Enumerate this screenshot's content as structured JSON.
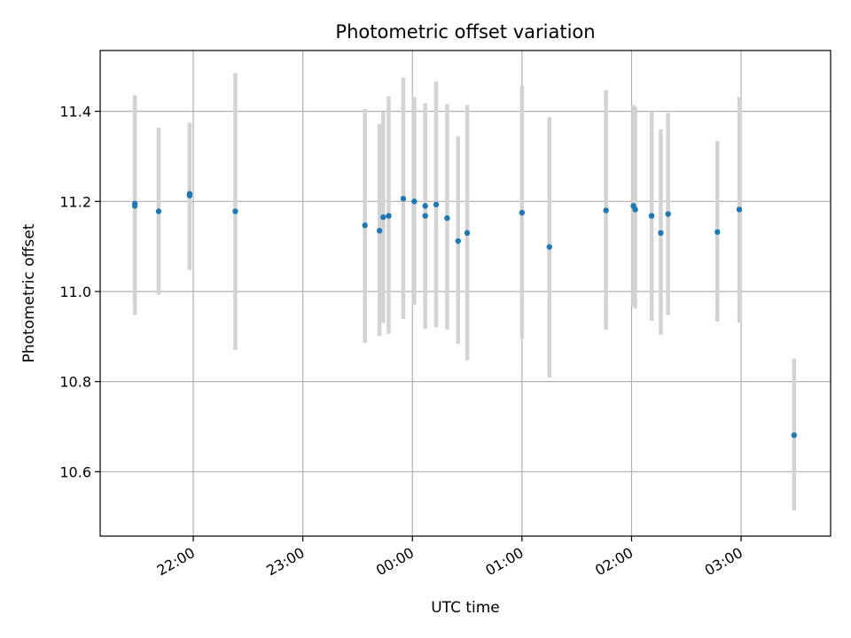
{
  "chart_data": {
    "type": "scatter",
    "title": "Photometric offset variation",
    "xlabel": "UTC time",
    "ylabel": "Photometric offset",
    "xlim": [
      "21:09",
      "03:49"
    ],
    "ylim": [
      10.457,
      11.535
    ],
    "x_ticks": [
      "22:00",
      "23:00",
      "00:00",
      "01:00",
      "02:00",
      "03:00"
    ],
    "y_ticks": [
      "10.6",
      "10.8",
      "11.0",
      "11.2",
      "11.4"
    ],
    "grid": true,
    "colors": {
      "points": "#1f77b4",
      "errorbars": "#d3d3d3",
      "grid": "#b0b0b0"
    },
    "points": [
      {
        "x": "21:28",
        "y": 11.195,
        "lo": 10.97,
        "hi": 11.42
      },
      {
        "x": "21:28",
        "y": 11.19,
        "lo": 10.948,
        "hi": 11.436
      },
      {
        "x": "21:41",
        "y": 11.178,
        "lo": 10.993,
        "hi": 11.364
      },
      {
        "x": "21:58",
        "y": 11.217,
        "lo": 11.048,
        "hi": 11.375
      },
      {
        "x": "21:58",
        "y": 11.213,
        "lo": 11.048,
        "hi": 11.375
      },
      {
        "x": "22:23",
        "y": 11.178,
        "lo": 10.87,
        "hi": 11.485
      },
      {
        "x": "23:34",
        "y": 11.147,
        "lo": 10.886,
        "hi": 11.405
      },
      {
        "x": "23:42",
        "y": 11.135,
        "lo": 10.901,
        "hi": 11.372
      },
      {
        "x": "23:44",
        "y": 11.165,
        "lo": 10.93,
        "hi": 11.398
      },
      {
        "x": "23:47",
        "y": 11.168,
        "lo": 10.906,
        "hi": 11.433
      },
      {
        "x": "23:55",
        "y": 11.206,
        "lo": 10.939,
        "hi": 11.475
      },
      {
        "x": "00:01",
        "y": 11.2,
        "lo": 10.97,
        "hi": 11.432
      },
      {
        "x": "00:07",
        "y": 11.19,
        "lo": 10.975,
        "hi": 11.41
      },
      {
        "x": "00:07",
        "y": 11.168,
        "lo": 10.917,
        "hi": 11.418
      },
      {
        "x": "00:13",
        "y": 11.193,
        "lo": 10.92,
        "hi": 11.466
      },
      {
        "x": "00:19",
        "y": 11.163,
        "lo": 10.916,
        "hi": 11.416
      },
      {
        "x": "00:25",
        "y": 11.112,
        "lo": 10.884,
        "hi": 11.345
      },
      {
        "x": "00:30",
        "y": 11.13,
        "lo": 10.847,
        "hi": 11.414
      },
      {
        "x": "01:00",
        "y": 11.175,
        "lo": 10.895,
        "hi": 11.456
      },
      {
        "x": "01:15",
        "y": 11.099,
        "lo": 10.809,
        "hi": 11.387
      },
      {
        "x": "01:46",
        "y": 11.18,
        "lo": 10.915,
        "hi": 11.447
      },
      {
        "x": "02:01",
        "y": 11.19,
        "lo": 10.968,
        "hi": 11.414
      },
      {
        "x": "02:02",
        "y": 11.182,
        "lo": 10.962,
        "hi": 11.41
      },
      {
        "x": "02:11",
        "y": 11.168,
        "lo": 10.935,
        "hi": 11.4
      },
      {
        "x": "02:16",
        "y": 11.13,
        "lo": 10.904,
        "hi": 11.36
      },
      {
        "x": "02:20",
        "y": 11.172,
        "lo": 10.948,
        "hi": 11.396
      },
      {
        "x": "02:47",
        "y": 11.132,
        "lo": 10.933,
        "hi": 11.334
      },
      {
        "x": "02:59",
        "y": 11.182,
        "lo": 10.931,
        "hi": 11.432
      },
      {
        "x": "03:29",
        "y": 10.681,
        "lo": 10.514,
        "hi": 10.851
      }
    ]
  }
}
